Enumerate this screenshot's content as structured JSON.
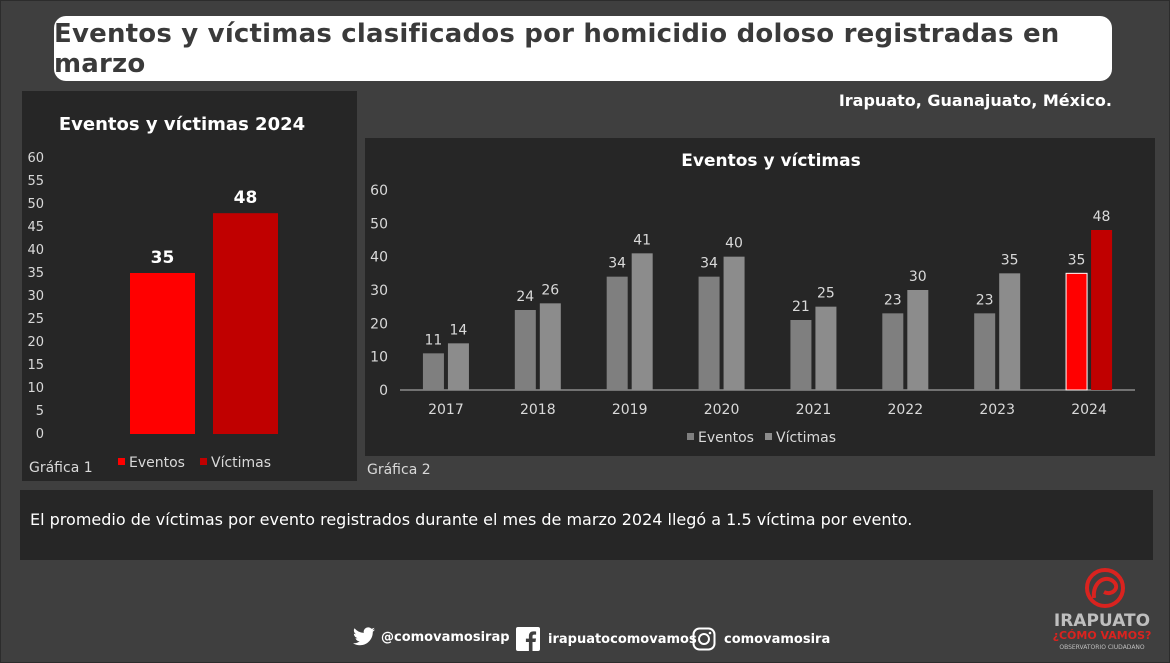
{
  "header": {
    "title": "Eventos y víctimas clasificados por homicidio doloso registradas en marzo"
  },
  "location": "Irapuato, Guanajuato, México.",
  "colors": {
    "eventos_2024": "#ff0000",
    "victimas_2024": "#c00000",
    "eventos_hist": "#7f7f7f",
    "victimas_hist": "#8c8c8c"
  },
  "chart_data": [
    {
      "type": "bar",
      "title": "Eventos y víctimas 2024",
      "caption": "Gráfica 1",
      "categories": [
        "Eventos",
        "Víctimas"
      ],
      "values": [
        35,
        48
      ],
      "ylim": [
        0,
        60
      ],
      "yticks": [
        "0",
        "5",
        "10",
        "15",
        "20",
        "25",
        "30",
        "35",
        "40",
        "45",
        "50",
        "55",
        "60"
      ],
      "legend": [
        "Eventos",
        "Víctimas"
      ],
      "legend_position": "bottom"
    },
    {
      "type": "bar",
      "title": "Eventos y víctimas",
      "caption": "Gráfica 2",
      "categories": [
        "2017",
        "2018",
        "2019",
        "2020",
        "2021",
        "2022",
        "2023",
        "2024"
      ],
      "series": [
        {
          "name": "Eventos",
          "values": [
            11,
            24,
            34,
            34,
            21,
            23,
            23,
            35
          ]
        },
        {
          "name": "Víctimas",
          "values": [
            14,
            26,
            41,
            40,
            25,
            30,
            35,
            48
          ]
        }
      ],
      "ylim": [
        0,
        60
      ],
      "yticks": [
        "0",
        "10",
        "20",
        "30",
        "40",
        "50",
        "60"
      ],
      "legend_position": "bottom"
    }
  ],
  "summary": "El promedio de víctimas por evento registrados durante el mes de marzo 2024 llegó a 1.5 víctima por evento.",
  "footer": {
    "twitter": "@comovamosirap",
    "facebook": "irapuatocomovamos",
    "instagram": "comovamosira"
  },
  "logo": {
    "line1": "IRAPUATO",
    "line2": "¿CÓMO VAMOS?",
    "line3": "OBSERVATORIO CIUDADANO"
  }
}
